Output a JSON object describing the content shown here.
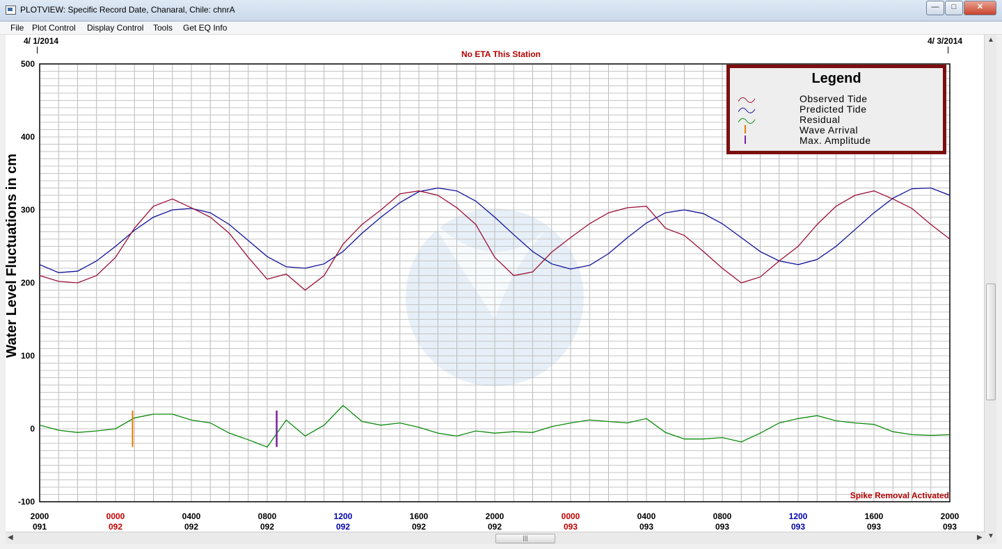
{
  "window": {
    "title": "PLOTVIEW: Specific Record Date, Chanaral, Chile: chnrA",
    "minimize_label": "—",
    "maximize_label": "□",
    "close_label": "✕"
  },
  "menu": [
    "File",
    "Plot Control",
    "Display Control",
    "Tools",
    "Get EQ Info"
  ],
  "header": {
    "start_date": "4/ 1/2014",
    "end_date": "4/ 3/2014",
    "eta_message": "No ETA This Station"
  },
  "footer": {
    "spike_message": "Spike Removal Activated"
  },
  "colors": {
    "observed": "#9b0f37",
    "predicted": "#10109a",
    "residual": "#0a8a0a",
    "wave_arrival": "#e07b00",
    "max_amplitude": "#7a1fa0",
    "midnight_label": "#c00000",
    "noon_label": "#0000b0",
    "legend_border": "#7b0f0f"
  },
  "legend": {
    "title": "Legend",
    "items": [
      {
        "label": "Observed Tide",
        "icon": "wave-red"
      },
      {
        "label": "Predicted Tide",
        "icon": "wave-blue"
      },
      {
        "label": "Residual",
        "icon": "wave-green"
      },
      {
        "label": "Wave Arrival",
        "icon": "bar-orange"
      },
      {
        "label": "Max. Amplitude",
        "icon": "bar-purple"
      }
    ]
  },
  "chart_data": {
    "type": "line",
    "ylabel": "Water Level Fluctuations in cm",
    "ylim": [
      -100,
      500
    ],
    "yticks": [
      -100,
      0,
      100,
      200,
      300,
      400,
      500
    ],
    "xlim_hours": [
      0,
      48
    ],
    "x_ticks": [
      {
        "time": "2000",
        "day": "091",
        "color": "black"
      },
      {
        "time": "0000",
        "day": "092",
        "color": "red"
      },
      {
        "time": "0400",
        "day": "092",
        "color": "black"
      },
      {
        "time": "0800",
        "day": "092",
        "color": "black"
      },
      {
        "time": "1200",
        "day": "092",
        "color": "blue"
      },
      {
        "time": "1600",
        "day": "092",
        "color": "black"
      },
      {
        "time": "2000",
        "day": "092",
        "color": "black"
      },
      {
        "time": "0000",
        "day": "093",
        "color": "red"
      },
      {
        "time": "0400",
        "day": "093",
        "color": "black"
      },
      {
        "time": "0800",
        "day": "093",
        "color": "black"
      },
      {
        "time": "1200",
        "day": "093",
        "color": "blue"
      },
      {
        "time": "1600",
        "day": "093",
        "color": "black"
      },
      {
        "time": "2000",
        "day": "093",
        "color": "black"
      }
    ],
    "grid": true,
    "legend_position": "top-right",
    "wave_arrival_hour": 4.9,
    "max_amplitude_hour": 12.5,
    "series": [
      {
        "name": "Predicted Tide",
        "x_hours": [
          0,
          1,
          2,
          3,
          4,
          5,
          6,
          7,
          8,
          9,
          10,
          11,
          12,
          13,
          14,
          15,
          16,
          17,
          18,
          19,
          20,
          21,
          22,
          23,
          24,
          25,
          26,
          27,
          28,
          29,
          30,
          31,
          32,
          33,
          34,
          35,
          36,
          37,
          38,
          39,
          40,
          41,
          42,
          43,
          44,
          45,
          46,
          47,
          48
        ],
        "values": [
          225,
          214,
          216,
          230,
          250,
          272,
          290,
          300,
          302,
          296,
          280,
          258,
          236,
          222,
          220,
          226,
          243,
          268,
          290,
          310,
          325,
          330,
          326,
          312,
          290,
          266,
          243,
          226,
          219,
          224,
          240,
          262,
          282,
          296,
          300,
          295,
          281,
          262,
          243,
          230,
          225,
          232,
          250,
          273,
          296,
          316,
          329,
          330,
          320
        ]
      },
      {
        "name": "Observed Tide",
        "x_hours": [
          0,
          1,
          2,
          3,
          4,
          5,
          6,
          7,
          8,
          9,
          10,
          11,
          12,
          13,
          14,
          15,
          16,
          17,
          18,
          19,
          20,
          21,
          22,
          23,
          24,
          25,
          26,
          27,
          28,
          29,
          30,
          31,
          32,
          33,
          34,
          35,
          36,
          37,
          38,
          39,
          40,
          41,
          42,
          43,
          44,
          45,
          46,
          47,
          48
        ],
        "values": [
          210,
          202,
          200,
          210,
          235,
          275,
          305,
          315,
          303,
          290,
          268,
          235,
          205,
          212,
          190,
          210,
          253,
          280,
          300,
          322,
          326,
          320,
          303,
          280,
          235,
          210,
          215,
          242,
          262,
          281,
          296,
          303,
          305,
          275,
          265,
          243,
          220,
          200,
          208,
          230,
          250,
          280,
          305,
          320,
          326,
          315,
          302,
          280,
          260
        ]
      },
      {
        "name": "Residual",
        "x_hours": [
          0,
          1,
          2,
          3,
          4,
          5,
          6,
          7,
          8,
          9,
          10,
          11,
          12,
          13,
          14,
          15,
          16,
          17,
          18,
          19,
          20,
          21,
          22,
          23,
          24,
          25,
          26,
          27,
          28,
          29,
          30,
          31,
          32,
          33,
          34,
          35,
          36,
          37,
          38,
          39,
          40,
          41,
          42,
          43,
          44,
          45,
          46,
          47,
          48
        ],
        "values": [
          5,
          -2,
          -5,
          -3,
          0,
          15,
          20,
          20,
          12,
          8,
          -6,
          -15,
          -25,
          12,
          -10,
          5,
          32,
          10,
          5,
          8,
          2,
          -6,
          -10,
          -3,
          -6,
          -4,
          -5,
          3,
          8,
          12,
          10,
          8,
          14,
          -5,
          -14,
          -14,
          -12,
          -18,
          -6,
          8,
          14,
          18,
          11,
          8,
          6,
          -4,
          -8,
          -9,
          -8
        ]
      }
    ]
  }
}
